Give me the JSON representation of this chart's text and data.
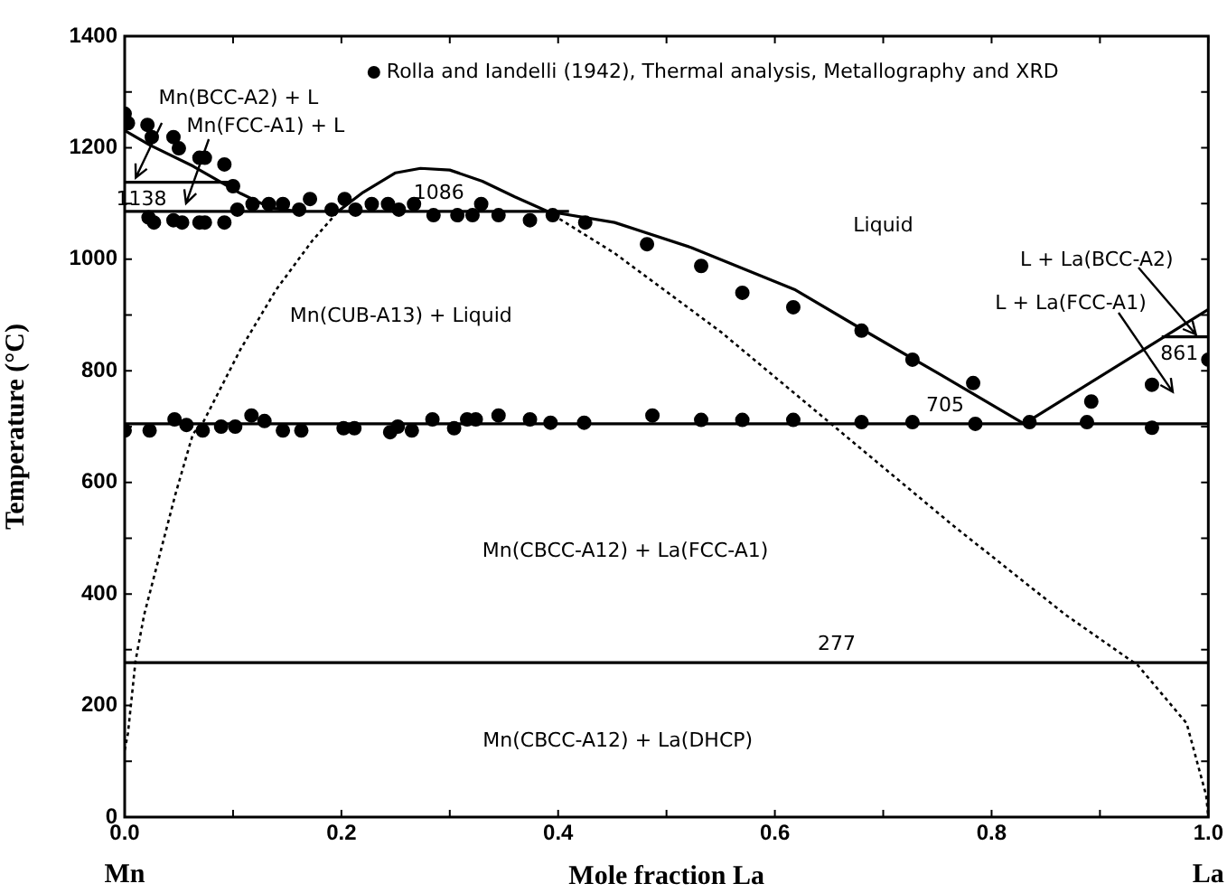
{
  "chart_data": {
    "type": "scatter",
    "xlabel": "Mole fraction La",
    "ylabel": "Temperature (°C)",
    "xlim": [
      0,
      1
    ],
    "ylim": [
      0,
      1400
    ],
    "xticks": [
      {
        "value": 0,
        "label": "0.0"
      },
      {
        "value": 0.1,
        "label": null
      },
      {
        "value": 0.2,
        "label": "0.2"
      },
      {
        "value": 0.3,
        "label": null
      },
      {
        "value": 0.4,
        "label": "0.4"
      },
      {
        "value": 0.5,
        "label": null
      },
      {
        "value": 0.6,
        "label": "0.6"
      },
      {
        "value": 0.7,
        "label": null
      },
      {
        "value": 0.8,
        "label": "0.8"
      },
      {
        "value": 0.9,
        "label": null
      },
      {
        "value": 1,
        "label": "1.0"
      }
    ],
    "yticks": [
      0,
      {
        "value": 100,
        "label": null
      },
      200,
      {
        "value": 300,
        "label": null
      },
      400,
      {
        "value": 500,
        "label": null
      },
      600,
      {
        "value": 700,
        "label": null
      },
      800,
      {
        "value": 900,
        "label": null
      },
      1000,
      {
        "value": 1100,
        "label": null
      },
      1200,
      {
        "value": 1300,
        "label": null
      },
      1400
    ],
    "grid": false,
    "legend": "top",
    "series": [
      {
        "type": "scatter",
        "marker": "circle",
        "name": "Rolla and Iandelli (1942), Thermal analysis, Metallography and XRD",
        "color": "#000000",
        "x": [
          0.0,
          0.003,
          0.021,
          0.025,
          0.045,
          0.05,
          0.069,
          0.074,
          0.092,
          0.1,
          0.104,
          0.118,
          0.133,
          0.146,
          0.161,
          0.171,
          0.191,
          0.203,
          0.213,
          0.228,
          0.243,
          0.253,
          0.267,
          0.285,
          0.307,
          0.321,
          0.329,
          0.345,
          0.374,
          0.395,
          0.425,
          0.022,
          0.027,
          0.045,
          0.053,
          0.069,
          0.074,
          0.092,
          0.482,
          0.532,
          0.57,
          0.617,
          0.68,
          0.727,
          0.783,
          0.892,
          0.948,
          1.0,
          0.487,
          0.532,
          0.57,
          0.617,
          0.68,
          0.727,
          0.785,
          0.835,
          0.888,
          0.948,
          0.0,
          0.023,
          0.046,
          0.057,
          0.072,
          0.089,
          0.102,
          0.117,
          0.129,
          0.146,
          0.163,
          0.202,
          0.212,
          0.245,
          0.252,
          0.265,
          0.284,
          0.304,
          0.316,
          0.324,
          0.345,
          0.374,
          0.393,
          0.424
        ],
        "values": [
          1261,
          1244,
          1241,
          1219,
          1219,
          1199,
          1182,
          1182,
          1170,
          1131,
          1089,
          1099,
          1099,
          1099,
          1089,
          1108,
          1089,
          1108,
          1089,
          1099,
          1099,
          1089,
          1099,
          1079,
          1079,
          1079,
          1099,
          1079,
          1070,
          1079,
          1066,
          1075,
          1066,
          1070,
          1066,
          1066,
          1066,
          1066,
          1027,
          988,
          940,
          914,
          872,
          820,
          778,
          745,
          775,
          820,
          720,
          712,
          712,
          712,
          708,
          708,
          705,
          708,
          708,
          698,
          693,
          693,
          713,
          703,
          693,
          700,
          700,
          720,
          710,
          693,
          693,
          697,
          697,
          690,
          700,
          693,
          713,
          697,
          713,
          713,
          720,
          713,
          707,
          707
        ]
      },
      {
        "type": "line",
        "color": "#000000",
        "line_style": "solid",
        "x": [
          0,
          0.023,
          0.063,
          0.107,
          0.135,
          0.16
        ],
        "values": [
          1231,
          1205,
          1167,
          1118,
          1092,
          1086
        ]
      },
      {
        "type": "line",
        "color": "#000000",
        "line_style": "solid",
        "x": [
          0.197,
          0.22,
          0.25,
          0.273,
          0.3,
          0.33,
          0.36,
          0.39,
          0.452,
          0.523,
          0.618,
          0.68,
          0.752,
          0.83
        ],
        "values": [
          1086,
          1120,
          1155,
          1163,
          1160,
          1140,
          1112,
          1086,
          1066,
          1021,
          946,
          875,
          794,
          705
        ]
      },
      {
        "type": "line",
        "color": "#000000",
        "line_style": "solid",
        "x": [
          0.83,
          1.0
        ],
        "values": [
          705,
          910
        ]
      },
      {
        "type": "line",
        "color": "#000000",
        "line_style": "solid",
        "x": [
          0,
          0.1
        ],
        "values": [
          1138,
          1138
        ]
      },
      {
        "type": "line",
        "color": "#000000",
        "line_style": "solid",
        "x": [
          0,
          0.41
        ],
        "values": [
          1086,
          1086
        ]
      },
      {
        "type": "line",
        "color": "#000000",
        "line_style": "solid",
        "x": [
          0,
          1
        ],
        "values": [
          705,
          705
        ]
      },
      {
        "type": "line",
        "color": "#000000",
        "line_style": "solid",
        "x": [
          0,
          1
        ],
        "values": [
          277,
          277
        ]
      },
      {
        "type": "line",
        "color": "#000000",
        "line_style": "solid",
        "x": [
          0.957,
          1
        ],
        "values": [
          861,
          861
        ]
      },
      {
        "type": "line",
        "color": "#000000",
        "line_style": "dotted",
        "x": [
          0,
          0.003,
          0.01,
          0.018,
          0.047,
          0.063,
          0.073,
          0.107,
          0.14,
          0.173,
          0.197
        ],
        "values": [
          120,
          150,
          280,
          363,
          580,
          687,
          710,
          839,
          946,
          1033,
          1086
        ]
      },
      {
        "type": "line",
        "color": "#000000",
        "line_style": "dotted",
        "x": [
          0.39,
          0.452,
          0.55,
          0.663,
          0.763,
          0.868,
          0.935,
          0.98,
          0.998,
          1.0
        ],
        "values": [
          1086,
          1011,
          870,
          687,
          525,
          363,
          272,
          168,
          39,
          0
        ]
      }
    ],
    "annotations": [
      "Mn(BCC-A2) + L",
      "Mn(FCC-A1) + L",
      {
        "text": "1138",
        "x": 0.022,
        "y": 1138
      },
      {
        "text": "1086",
        "x": 0.29,
        "y": 1086
      },
      "Liquid",
      "Mn(CUB-A13) + Liquid",
      "L + La(BCC-A2)",
      "L + La(FCC-A1)",
      {
        "text": "861",
        "x": 0.98,
        "y": 861
      },
      {
        "text": "705",
        "x": 0.757,
        "y": 705
      },
      "Mn(CBCC-A12) + La(FCC-A1)",
      {
        "text": "277",
        "x": 0.657,
        "y": 277
      },
      "Mn(CBCC-A12) + La(DHCP)",
      "Mn",
      "La"
    ]
  }
}
